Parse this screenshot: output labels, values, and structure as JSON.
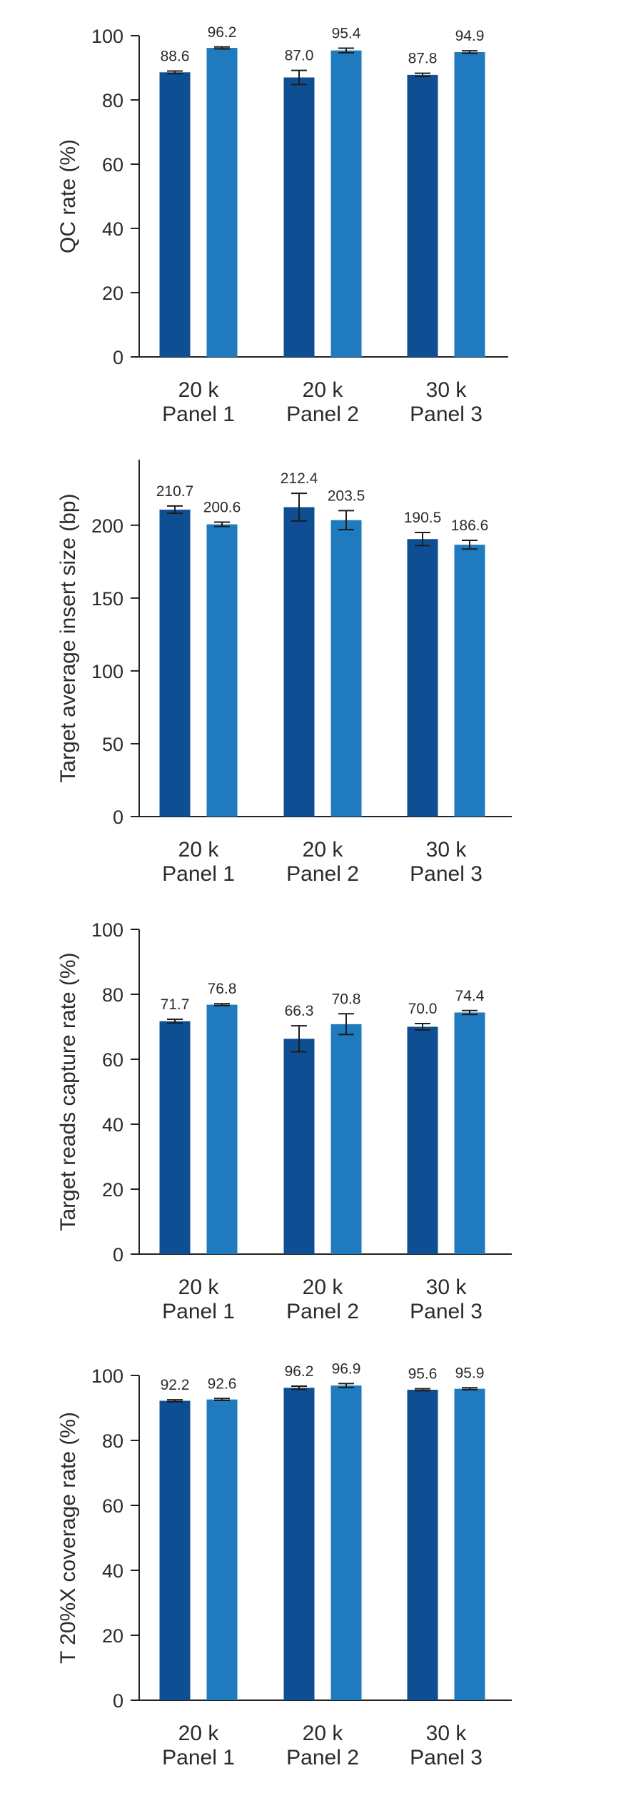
{
  "colors": {
    "series_1": "#0e4f93",
    "series_2": "#1f7bbd"
  },
  "chart_data": [
    {
      "type": "bar",
      "ylabel": "QC rate (%)",
      "ylim": [
        0,
        100
      ],
      "yticks": [
        0,
        20,
        40,
        60,
        80,
        100
      ],
      "categories": [
        [
          "20 k",
          "Panel 1"
        ],
        [
          "20 k",
          "Panel 2"
        ],
        [
          "30 k",
          "Panel 3"
        ]
      ],
      "series": [
        {
          "values": [
            88.6,
            87.0,
            87.8
          ],
          "error": [
            0.4,
            2.2,
            0.5
          ]
        },
        {
          "values": [
            96.2,
            95.4,
            94.9
          ],
          "error": [
            0.3,
            0.7,
            0.4
          ]
        }
      ],
      "grid": false
    },
    {
      "type": "bar",
      "ylabel": "Target average insert size (bp)",
      "ylim": [
        0,
        245
      ],
      "yticks": [
        0,
        50,
        100,
        150,
        200
      ],
      "categories": [
        [
          "20 k",
          "Panel 1"
        ],
        [
          "20 k",
          "Panel 2"
        ],
        [
          "30 k",
          "Panel 3"
        ]
      ],
      "series": [
        {
          "values": [
            210.7,
            212.4,
            190.5
          ],
          "error": [
            2.5,
            9.5,
            4.5
          ]
        },
        {
          "values": [
            200.6,
            203.5,
            186.6
          ],
          "error": [
            1.5,
            6.5,
            3.0
          ]
        }
      ],
      "grid": false
    },
    {
      "type": "bar",
      "ylabel": "Target reads capture rate (%)",
      "ylim": [
        0,
        100
      ],
      "yticks": [
        0,
        20,
        40,
        60,
        80,
        100
      ],
      "categories": [
        [
          "20 k",
          "Panel 1"
        ],
        [
          "20 k",
          "Panel 2"
        ],
        [
          "30 k",
          "Panel 3"
        ]
      ],
      "series": [
        {
          "values": [
            71.7,
            66.3,
            70.0
          ],
          "error": [
            0.6,
            4.0,
            1.0
          ]
        },
        {
          "values": [
            76.8,
            70.8,
            74.4
          ],
          "error": [
            0.3,
            3.2,
            0.6
          ]
        }
      ],
      "grid": false
    },
    {
      "type": "bar",
      "ylabel": "T 20%X coverage rate (%)",
      "ylim": [
        0,
        100
      ],
      "yticks": [
        0,
        20,
        40,
        60,
        80,
        100
      ],
      "categories": [
        [
          "20 k",
          "Panel 1"
        ],
        [
          "20 k",
          "Panel 2"
        ],
        [
          "30 k",
          "Panel 3"
        ]
      ],
      "series": [
        {
          "values": [
            92.2,
            96.2,
            95.6
          ],
          "error": [
            0.3,
            0.5,
            0.3
          ]
        },
        {
          "values": [
            92.6,
            96.9,
            95.9
          ],
          "error": [
            0.3,
            0.6,
            0.3
          ]
        }
      ],
      "grid": false
    }
  ]
}
